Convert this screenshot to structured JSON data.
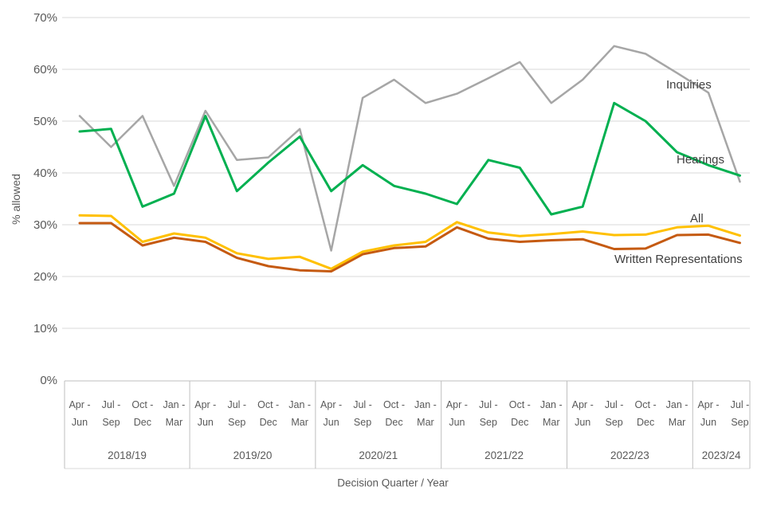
{
  "chart_data": {
    "type": "line",
    "title": "",
    "xlabel": "Decision Quarter / Year",
    "ylabel": "% allowed",
    "ylim": [
      0,
      70
    ],
    "grid": true,
    "legend_position": "direct-line-labels-right",
    "y_tick_labels": [
      "70%",
      "60%",
      "50%",
      "40%",
      "30%",
      "20%",
      "10%",
      "0%"
    ],
    "y_tick_values": [
      70,
      60,
      50,
      40,
      30,
      20,
      10,
      0
    ],
    "year_groups": [
      {
        "label": "2018/19",
        "quarters": [
          "Apr - Jun",
          "Jul - Sep",
          "Oct - Dec",
          "Jan - Mar"
        ]
      },
      {
        "label": "2019/20",
        "quarters": [
          "Apr - Jun",
          "Jul - Sep",
          "Oct - Dec",
          "Jan - Mar"
        ]
      },
      {
        "label": "2020/21",
        "quarters": [
          "Apr - Jun",
          "Jul - Sep",
          "Oct - Dec",
          "Jan - Mar"
        ]
      },
      {
        "label": "2021/22",
        "quarters": [
          "Apr - Jun",
          "Jul - Sep",
          "Oct - Dec",
          "Jan - Mar"
        ]
      },
      {
        "label": "2022/23",
        "quarters": [
          "Apr - Jun",
          "Jul - Sep",
          "Oct - Dec",
          "Jan - Mar"
        ]
      },
      {
        "label": "2023/24",
        "quarters": [
          "Apr - Jun",
          "Jul - Sep"
        ]
      }
    ],
    "series": [
      {
        "name": "Inquiries",
        "color": "#a6a6a6",
        "values": [
          51,
          45,
          51,
          37.5,
          52,
          42.5,
          43,
          48.5,
          25,
          54.5,
          58,
          53.5,
          55.3,
          58.3,
          61.4,
          53.5,
          58,
          64.5,
          63,
          59.3,
          55.5,
          38.3
        ]
      },
      {
        "name": "Hearings",
        "color": "#00b050",
        "values": [
          48,
          48.5,
          33.5,
          36,
          51,
          36.5,
          42,
          47,
          36.5,
          41.5,
          37.5,
          36,
          34,
          42.5,
          41,
          32,
          33.5,
          53.5,
          50,
          44,
          41.5,
          39.5
        ]
      },
      {
        "name": "All",
        "color": "#ffc000",
        "values": [
          31.8,
          31.7,
          26.7,
          28.3,
          27.5,
          24.5,
          23.4,
          23.8,
          21.5,
          24.8,
          26,
          26.7,
          30.5,
          28.5,
          27.8,
          28.2,
          28.7,
          28,
          28.1,
          29.5,
          29.8,
          27.9
        ]
      },
      {
        "name": "Written Representations",
        "color": "#c55a11",
        "values": [
          30.3,
          30.3,
          26,
          27.5,
          26.7,
          23.6,
          22,
          21.2,
          21,
          24.3,
          25.5,
          25.8,
          29.5,
          27.3,
          26.7,
          27,
          27.2,
          25.3,
          25.4,
          28,
          28.1,
          26.5
        ]
      }
    ],
    "colors": {
      "gridline": "#d9d9d9",
      "table_border": "#bfbfbf",
      "table_border_light": "#d9d9d9",
      "tick_text": "#595959",
      "annotation_text": "#404040"
    }
  }
}
